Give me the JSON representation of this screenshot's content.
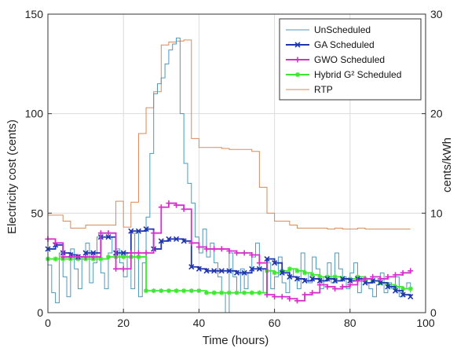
{
  "chart_data": {
    "type": "line",
    "xlabel": "Time (hours)",
    "ylabel": "Electricity cost (cents)",
    "y2label": "cents/kWh",
    "xlim": [
      0,
      100
    ],
    "ylim": [
      0,
      150
    ],
    "y2lim": [
      0,
      30
    ],
    "xticks": [
      "0",
      "20",
      "40",
      "60",
      "80",
      "100"
    ],
    "yticks": [
      "0",
      "50",
      "100",
      "150"
    ],
    "y2ticks": [
      "0",
      "10",
      "20",
      "30"
    ],
    "grid": true,
    "legend_position": "top-right",
    "series": [
      {
        "name": "UnScheduled",
        "color": "#4a9ab8",
        "marker": "none",
        "axis": "left",
        "x": [
          0,
          1,
          2,
          3,
          4,
          5,
          6,
          7,
          8,
          9,
          10,
          11,
          12,
          13,
          14,
          15,
          16,
          17,
          18,
          19,
          20,
          21,
          22,
          23,
          24,
          25,
          26,
          27,
          28,
          29,
          30,
          31,
          32,
          33,
          34,
          35,
          36,
          37,
          38,
          39,
          40,
          41,
          42,
          43,
          44,
          45,
          46,
          47,
          48,
          49,
          50,
          51,
          52,
          53,
          54,
          55,
          56,
          57,
          58,
          59,
          60,
          61,
          62,
          63,
          64,
          65,
          66,
          67,
          68,
          69,
          70,
          71,
          72,
          73,
          74,
          75,
          76,
          77,
          78,
          79,
          80,
          81,
          82,
          83,
          84,
          85,
          86,
          87,
          88,
          89,
          90,
          91,
          92,
          93,
          94,
          95,
          96
        ],
        "y": [
          24,
          10,
          5,
          30,
          18,
          8,
          32,
          22,
          12,
          28,
          35,
          15,
          25,
          38,
          20,
          12,
          30,
          38,
          32,
          25,
          18,
          30,
          12,
          40,
          8,
          25,
          48,
          80,
          110,
          115,
          118,
          125,
          132,
          135,
          138,
          100,
          75,
          65,
          55,
          38,
          30,
          42,
          28,
          35,
          25,
          18,
          10,
          0,
          30,
          18,
          10,
          22,
          12,
          20,
          28,
          35,
          22,
          10,
          25,
          12,
          18,
          28,
          15,
          10,
          22,
          18,
          12,
          30,
          20,
          15,
          28,
          22,
          12,
          18,
          25,
          15,
          30,
          22,
          18,
          12,
          20,
          25,
          10,
          18,
          15,
          12,
          8,
          14,
          20,
          10,
          15,
          12,
          18,
          8,
          12,
          15,
          10
        ]
      },
      {
        "name": "GA Scheduled",
        "color": "#1f35b0",
        "marker": "x",
        "axis": "left",
        "x": [
          0,
          2,
          4,
          6,
          8,
          10,
          12,
          14,
          16,
          18,
          20,
          22,
          24,
          26,
          28,
          30,
          32,
          34,
          36,
          38,
          40,
          42,
          44,
          46,
          48,
          50,
          52,
          54,
          56,
          58,
          60,
          62,
          64,
          66,
          68,
          70,
          72,
          74,
          76,
          78,
          80,
          82,
          84,
          86,
          88,
          90,
          92,
          94,
          96
        ],
        "y": [
          32,
          34,
          30,
          29,
          28,
          30,
          30,
          38,
          38,
          30,
          30,
          41,
          41,
          42,
          32,
          36,
          37,
          37,
          36,
          23,
          22,
          21,
          21,
          21,
          21,
          20,
          20,
          22,
          22,
          27,
          25,
          20,
          18,
          17,
          16,
          17,
          16,
          17,
          16,
          17,
          16,
          17,
          15,
          16,
          15,
          13,
          11,
          9,
          8
        ]
      },
      {
        "name": "GWO Scheduled",
        "color": "#d62fcb",
        "marker": "+",
        "axis": "left",
        "x": [
          0,
          2,
          4,
          6,
          8,
          10,
          12,
          14,
          16,
          18,
          20,
          22,
          24,
          26,
          28,
          30,
          32,
          34,
          36,
          38,
          40,
          42,
          44,
          46,
          48,
          50,
          52,
          54,
          56,
          58,
          60,
          62,
          64,
          66,
          68,
          70,
          72,
          74,
          76,
          78,
          80,
          82,
          84,
          86,
          88,
          90,
          92,
          94,
          96
        ],
        "y": [
          37,
          35,
          28,
          28,
          28,
          28,
          28,
          40,
          40,
          22,
          22,
          30,
          30,
          30,
          40,
          53,
          55,
          54,
          52,
          35,
          33,
          32,
          32,
          32,
          31,
          30,
          30,
          29,
          25,
          9,
          8,
          8,
          7,
          6,
          9,
          10,
          14,
          13,
          12,
          13,
          14,
          16,
          17,
          18,
          17,
          18,
          19,
          20,
          21
        ]
      },
      {
        "name": "Hybrid G² Scheduled",
        "color": "#3ee832",
        "marker": "*",
        "axis": "left",
        "x": [
          0,
          2,
          4,
          6,
          8,
          10,
          12,
          14,
          16,
          18,
          20,
          22,
          24,
          26,
          28,
          30,
          32,
          34,
          36,
          38,
          40,
          42,
          44,
          46,
          48,
          50,
          52,
          54,
          56,
          58,
          60,
          62,
          64,
          66,
          68,
          70,
          72,
          74,
          76,
          78,
          80,
          82,
          84,
          86,
          88,
          90,
          92,
          94,
          96
        ],
        "y": [
          27,
          27,
          27,
          27,
          27,
          27,
          27,
          27,
          28,
          28,
          28,
          28,
          28,
          11,
          11,
          11,
          11,
          11,
          11,
          11,
          11,
          10,
          10,
          10,
          10,
          10,
          10,
          10,
          10,
          21,
          20,
          21,
          22,
          21,
          20,
          19,
          18,
          18,
          18,
          17,
          17,
          18,
          17,
          16,
          15,
          14,
          13,
          12,
          12
        ]
      },
      {
        "name": "RTP",
        "color": "#d98a5a",
        "marker": "none",
        "axis": "right",
        "x": [
          0,
          2,
          4,
          6,
          8,
          10,
          12,
          14,
          16,
          18,
          20,
          22,
          24,
          26,
          28,
          30,
          32,
          34,
          36,
          38,
          40,
          42,
          44,
          46,
          48,
          50,
          52,
          54,
          56,
          58,
          60,
          62,
          64,
          66,
          68,
          70,
          72,
          74,
          76,
          78,
          80,
          82,
          84,
          86,
          88,
          90,
          92,
          94,
          96
        ],
        "y": [
          9.8,
          9.8,
          9.2,
          8.5,
          8.5,
          8.8,
          8.8,
          8.8,
          8.8,
          11.2,
          8.6,
          11.1,
          18.0,
          20.6,
          22.2,
          26.9,
          27.2,
          27.3,
          27.4,
          17.5,
          16.6,
          16.6,
          16.6,
          16.5,
          16.4,
          16.4,
          16.4,
          16.2,
          12.6,
          10.0,
          9.2,
          9.2,
          8.8,
          8.5,
          8.5,
          8.5,
          8.5,
          8.4,
          8.5,
          8.4,
          8.4,
          8.5,
          8.4,
          8.4,
          8.4,
          8.4,
          8.4,
          8.4,
          8.4
        ]
      }
    ]
  }
}
